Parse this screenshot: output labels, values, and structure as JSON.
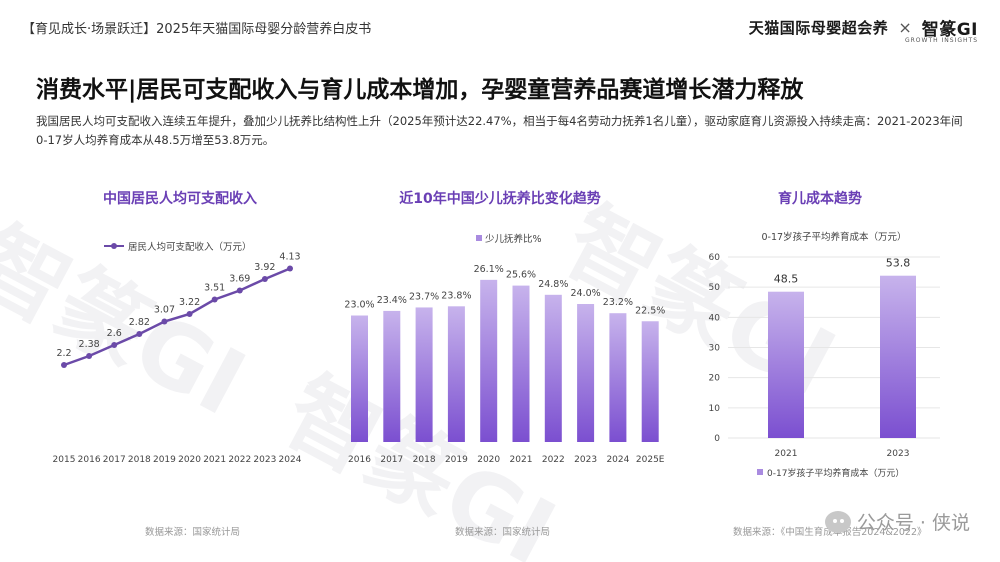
{
  "header": {
    "series_tag": "【育见成长·场景跃迁】2025年天猫国际母婴分龄营养白皮书",
    "brand_tmall": "天猫国际母婴超会养",
    "brand_sep": "×",
    "brand_gi": "智篆GI",
    "brand_gi_sub": "GROWTH INSIGHTS"
  },
  "headline": "消费水平|居民可支配收入与育儿成本增加，孕婴童营养品赛道增长潜力释放",
  "subtext": "我国居民人均可支配收入连续五年提升，叠加少儿抚养比结构性上升（2025年预计达22.47%，相当于每4名劳动力抚养1名儿童），驱动家庭育儿资源投入持续走高：2021-2023年间0-17岁人均养育成本从48.5万增至53.8万元。",
  "panels": {
    "left_title": "中国居民人均可支配收入",
    "mid_title": "近10年中国少儿抚养比变化趋势",
    "right_title": "育儿成本趋势"
  },
  "sources": {
    "left": "数据来源：国家统计局",
    "mid": "数据来源：国家统计局",
    "right": "数据来源：《中国生育成本报告2024&2022》"
  },
  "footer": {
    "wechat_label": "公众号 · 侠说"
  },
  "watermark_text": "智篆GI",
  "colors": {
    "accent": "#6a3fb5",
    "line": "#6b4aa8",
    "bar_top": "#c7b3ec",
    "bar_bottom": "#7b4fd0"
  },
  "chart_data": [
    {
      "type": "line",
      "title": "中国居民人均可支配收入",
      "series": [
        {
          "name": "居民人均可支配收入（万元）",
          "values": [
            2.2,
            2.38,
            2.6,
            2.82,
            3.07,
            3.22,
            3.51,
            3.69,
            3.92,
            4.13
          ]
        }
      ],
      "categories": [
        "2015",
        "2016",
        "2017",
        "2018",
        "2019",
        "2020",
        "2021",
        "2022",
        "2023",
        "2024"
      ],
      "ylim": [
        1.5,
        4.5
      ],
      "legend": "top-left",
      "grid": false
    },
    {
      "type": "bar",
      "title": "近10年中国少儿抚养比变化趋势",
      "series": [
        {
          "name": "少儿抚养比%",
          "values": [
            23.0,
            23.4,
            23.7,
            23.8,
            26.1,
            25.6,
            24.8,
            24.0,
            23.2,
            22.5
          ],
          "labels": [
            "23.0%",
            "23.4%",
            "23.7%",
            "23.8%",
            "26.1%",
            "25.6%",
            "24.8%",
            "24.0%",
            "23.2%",
            "22.5%"
          ]
        }
      ],
      "categories": [
        "2016",
        "2017",
        "2018",
        "2019",
        "2020",
        "2021",
        "2022",
        "2023",
        "2024",
        "2025E"
      ],
      "ylim": [
        0,
        30
      ],
      "legend": "top-center",
      "grid": false
    },
    {
      "type": "bar",
      "title": "0-17岁孩子平均养育成本（万元）",
      "series": [
        {
          "name": "0-17岁孩子平均养育成本（万元）",
          "values": [
            48.5,
            53.8
          ]
        }
      ],
      "categories": [
        "2021",
        "2023"
      ],
      "yticks": [
        "0",
        "10",
        "20",
        "30",
        "40",
        "50",
        "60"
      ],
      "ylim": [
        0,
        60
      ],
      "legend": "bottom",
      "grid": true
    }
  ]
}
